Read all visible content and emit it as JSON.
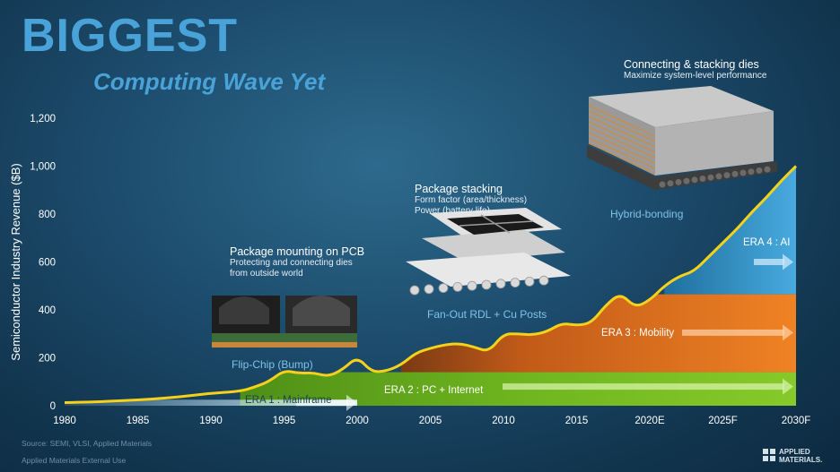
{
  "slide": {
    "title": "BIGGEST",
    "subtitle": "Computing Wave Yet",
    "source": "Source: SEMI, VLSI, Applied Materials",
    "classification": "Applied Materials External Use",
    "logo_line1": "APPLIED",
    "logo_line2": "MATERIALS."
  },
  "annotations": {
    "pcb": {
      "title": "Package mounting on PCB",
      "line1": "Protecting and connecting dies",
      "line2": "from outside world",
      "caption": "Flip-Chip (Bump)"
    },
    "stack": {
      "title": "Package stacking",
      "line1": "Form factor (area/thickness)",
      "line2": "Power (battery life)",
      "caption": "Fan-Out RDL + Cu Posts"
    },
    "dies": {
      "title": "Connecting & stacking dies",
      "line1": "Maximize system-level performance",
      "caption": "Hybrid-bonding"
    }
  },
  "colors": {
    "background": "#1d4d6e",
    "revenue_line": "#f5d11a",
    "era1": "#9fd5f2",
    "era2": "#6fb51f",
    "era3": "#ee7d1e",
    "era4": "#3d9fd6",
    "title": "#4aa3d8"
  },
  "chart_data": {
    "type": "area",
    "ylabel": "Semiconductor Industry Revenue ($B)",
    "xlabel": "",
    "ylim": [
      0,
      1200
    ],
    "xlim": [
      1980,
      2030
    ],
    "yticks": [
      0,
      200,
      400,
      600,
      800,
      1000,
      1200
    ],
    "ytick_labels": [
      "0",
      "200",
      "400",
      "600",
      "800",
      "1,000",
      "1,200"
    ],
    "xticks": [
      1980,
      1985,
      1990,
      1995,
      2000,
      2005,
      2010,
      2015,
      2020,
      2025,
      2030
    ],
    "xtick_labels": [
      "1980",
      "1985",
      "1990",
      "1995",
      "2000",
      "2005",
      "2010",
      "2015",
      "2020E",
      "2025F",
      "2030F"
    ],
    "grid": false,
    "series": [
      {
        "name": "",
        "x": [
          1980,
          1982,
          1984,
          1986,
          1988,
          1990,
          1992,
          1993,
          1994,
          1995,
          1996,
          1997,
          1998,
          1999,
          2000,
          2001,
          2002,
          2003,
          2004,
          2005,
          2006,
          2007,
          2008,
          2009,
          2010,
          2011,
          2012,
          2013,
          2014,
          2015,
          2016,
          2017,
          2018,
          2019,
          2020,
          2021,
          2022,
          2023,
          2024,
          2025,
          2026,
          2027,
          2028,
          2029,
          2030
        ],
        "values": [
          13,
          15,
          22,
          27,
          38,
          52,
          60,
          78,
          102,
          148,
          135,
          138,
          122,
          150,
          205,
          140,
          145,
          170,
          220,
          240,
          255,
          260,
          245,
          225,
          300,
          300,
          295,
          310,
          345,
          335,
          345,
          420,
          470,
          410,
          440,
          500,
          540,
          560,
          620,
          680,
          740,
          810,
          870,
          940,
          1000
        ]
      }
    ],
    "eras": [
      {
        "label": "ERA 1 : Mainframe",
        "from": 1980,
        "to": 2000,
        "band": [
          0,
          25
        ]
      },
      {
        "label": "ERA 2 : PC + Internet",
        "from": 1992,
        "to": 2030,
        "band": [
          0,
          140
        ]
      },
      {
        "label": "ERA 3 : Mobility",
        "from": 2003,
        "to": 2030,
        "band": [
          140,
          465
        ]
      },
      {
        "label": "ERA 4 : AI",
        "from": 2021,
        "to": 2030,
        "band": [
          465,
          1000
        ]
      }
    ]
  }
}
